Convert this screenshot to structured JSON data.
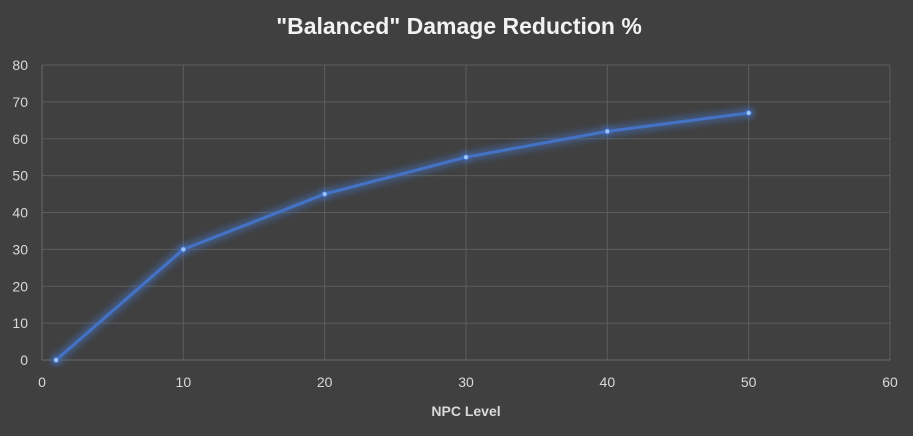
{
  "chart_data": {
    "type": "line",
    "title": "\"Balanced\" Damage Reduction %",
    "xlabel": "NPC Level",
    "ylabel": "",
    "xlim": [
      0,
      60
    ],
    "ylim": [
      0,
      80
    ],
    "xticks": [
      0,
      10,
      20,
      30,
      40,
      50,
      60
    ],
    "yticks": [
      0,
      10,
      20,
      30,
      40,
      50,
      60,
      70,
      80
    ],
    "grid": true,
    "legend": "none",
    "series": [
      {
        "color": "#4472c4",
        "points": [
          {
            "x": 1,
            "y": 0
          },
          {
            "x": 10,
            "y": 30
          },
          {
            "x": 20,
            "y": 45
          },
          {
            "x": 30,
            "y": 55
          },
          {
            "x": 40,
            "y": 62
          },
          {
            "x": 50,
            "y": 67
          }
        ]
      }
    ]
  }
}
